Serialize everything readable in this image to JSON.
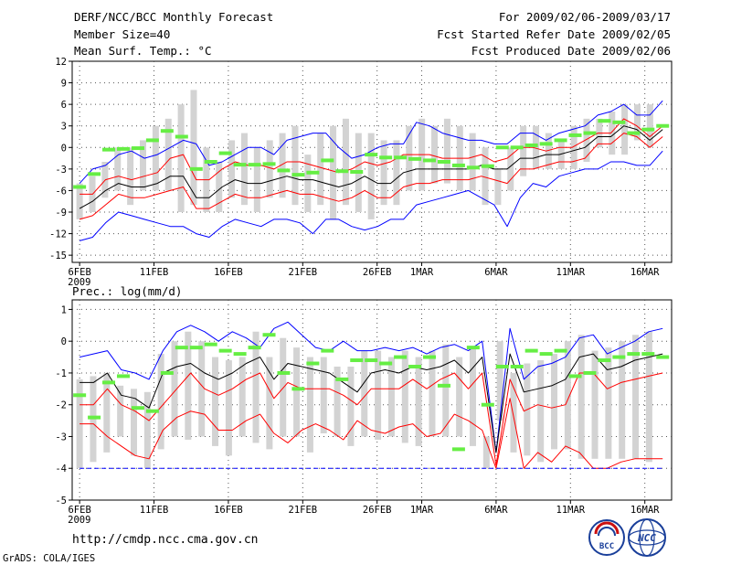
{
  "header": {
    "title": "DERF/NCC/BCC Monthly Forecast",
    "member_size": "Member Size=40",
    "variable": "Mean Surf. Temp.: °C",
    "period": "For 2009/02/06-2009/03/17",
    "started": "Fcst Started Refer Date 2009/02/05",
    "produced": "Fcst Produced Date 2009/02/06"
  },
  "footer": {
    "url": "http://cmdp.ncc.cma.gov.cn",
    "credit": "GrADS: COLA/IGES",
    "logo_left_text": "BCC",
    "logo_right_text": "NCC"
  },
  "colors": {
    "max_min": "#0000ff",
    "mean": "#000000",
    "spread": "#ff0000",
    "box": "#d3d3d3",
    "clim": "#66ee44",
    "grid": "#555555"
  },
  "chart_data": [
    {
      "type": "line",
      "title": "Mean Surf. Temp.: °C",
      "x_tick_labels": [
        "6FEB\n2009",
        "11FEB",
        "16FEB",
        "21FEB",
        "26FEB",
        "1MAR",
        "6MAR",
        "11MAR",
        "16MAR"
      ],
      "x_tick_days": [
        1,
        6,
        11,
        16,
        21,
        24,
        29,
        34,
        39
      ],
      "xlim": [
        0.5,
        40.8
      ],
      "ylim": [
        -16,
        12
      ],
      "y_ticks": [
        12,
        9,
        6,
        3,
        0,
        -3,
        -6,
        -9,
        -12,
        -15
      ],
      "grid": true,
      "series": [
        {
          "name": "max",
          "color": "#0000ff",
          "values": [
            -5,
            -3,
            -2.5,
            -1,
            -0.5,
            -1.5,
            -1,
            0,
            1,
            0.5,
            -2.5,
            -2,
            -1,
            0,
            0,
            -1,
            1,
            1.5,
            2,
            2,
            0,
            -1.5,
            -1,
            0,
            0.5,
            0.5,
            3.5,
            3,
            2,
            1.5,
            1,
            1,
            0.5,
            0.5,
            2,
            2,
            1,
            2,
            2.5,
            3,
            4.5,
            5,
            6,
            4.5,
            4.5,
            6.5
          ]
        },
        {
          "name": "upper",
          "color": "#ff0000",
          "values": [
            -6.5,
            -6.5,
            -4.5,
            -4,
            -4.5,
            -4,
            -3.5,
            -1.5,
            -1,
            -4.5,
            -4.5,
            -3,
            -2,
            -2.5,
            -2.5,
            -3,
            -2,
            -2,
            -2.5,
            -3,
            -3.5,
            -3,
            -2,
            -2.5,
            -2,
            -1,
            -1,
            -1,
            -1.5,
            -1.5,
            -1.5,
            -1,
            -2,
            -1.5,
            0,
            0,
            -0.5,
            0,
            0,
            1,
            2,
            2,
            4,
            3,
            1.5,
            3
          ]
        },
        {
          "name": "mean",
          "color": "#000000",
          "values": [
            -8.5,
            -7.5,
            -6,
            -5,
            -5.5,
            -5.5,
            -5,
            -4,
            -4,
            -7,
            -7,
            -5.5,
            -4.5,
            -5,
            -5,
            -4.5,
            -4,
            -4.5,
            -4.5,
            -5,
            -5.5,
            -5,
            -4,
            -5,
            -5,
            -3.5,
            -3,
            -3,
            -3,
            -3,
            -3,
            -2.5,
            -3,
            -3,
            -1.5,
            -1.5,
            -1,
            -1,
            -0.5,
            0,
            1.5,
            1.5,
            3,
            2.5,
            1,
            2.5
          ]
        },
        {
          "name": "lower",
          "color": "#ff0000",
          "values": [
            -10,
            -9.5,
            -8,
            -6.5,
            -7,
            -7,
            -6.5,
            -6,
            -5.5,
            -8.5,
            -8.5,
            -7.5,
            -6.5,
            -7,
            -7,
            -6.5,
            -6,
            -6.5,
            -6.5,
            -7,
            -7.5,
            -7,
            -6,
            -7,
            -7,
            -5.5,
            -5,
            -5,
            -4.5,
            -4.5,
            -4.5,
            -4,
            -4.5,
            -5,
            -3,
            -3,
            -2.5,
            -2,
            -2,
            -1.5,
            0.5,
            0.5,
            2,
            1.5,
            0,
            1.5
          ]
        },
        {
          "name": "min",
          "color": "#0000ff",
          "values": [
            -13,
            -12.5,
            -10.5,
            -9,
            -9.5,
            -10,
            -10.5,
            -11,
            -11,
            -12,
            -12.5,
            -11,
            -10,
            -10.5,
            -11,
            -10,
            -10,
            -10.5,
            -12,
            -10,
            -10,
            -11,
            -11.5,
            -11,
            -10,
            -10,
            -8,
            -7.5,
            -7,
            -6.5,
            -6,
            -7,
            -8,
            -11,
            -7,
            -5,
            -5.5,
            -4,
            -3.5,
            -3,
            -3,
            -2,
            -2,
            -2.5,
            -2.5,
            -0.5
          ]
        },
        {
          "name": "climatology",
          "color": "#66ee44",
          "values": [
            -5.5,
            -3.7,
            -0.3,
            -0.2,
            -0.1,
            1.0,
            2.3,
            1.5,
            -3.0,
            -2.0,
            -0.8,
            -2.4,
            -2.4,
            -2.3,
            -3.2,
            -3.8,
            -3.5,
            -1.8,
            -3.3,
            -3.4,
            -1.0,
            -1.4,
            -1.4,
            -1.6,
            -1.8,
            -2.0,
            -2.5,
            -2.8,
            -2.6,
            0.0,
            0.0,
            0.3,
            0.5,
            1.0,
            1.7,
            2.0,
            3.7,
            3.5,
            2.0,
            2.5,
            3.0
          ]
        }
      ],
      "boxes": [
        [
          -10,
          -5
        ],
        [
          -9,
          -4
        ],
        [
          -7,
          -2
        ],
        [
          -6,
          0
        ],
        [
          -8,
          0
        ],
        [
          -6,
          1
        ],
        [
          -6,
          3
        ],
        [
          -6,
          4
        ],
        [
          -9,
          6
        ],
        [
          -8,
          8
        ],
        [
          -9,
          0
        ],
        [
          -9,
          -2
        ],
        [
          -7,
          1
        ],
        [
          -8,
          2
        ],
        [
          -9,
          0
        ],
        [
          -7,
          1
        ],
        [
          -7,
          2
        ],
        [
          -8,
          3
        ],
        [
          -9,
          -1
        ],
        [
          -8,
          2
        ],
        [
          -10,
          3
        ],
        [
          -8,
          4
        ],
        [
          -9,
          2
        ],
        [
          -10,
          2
        ],
        [
          -8,
          1
        ],
        [
          -8,
          1
        ],
        [
          -6,
          3
        ],
        [
          -6,
          4
        ],
        [
          -5,
          3
        ],
        [
          -5,
          4
        ],
        [
          -6,
          3
        ],
        [
          -6,
          2
        ],
        [
          -8,
          0
        ],
        [
          -8,
          -3
        ],
        [
          -6,
          0
        ],
        [
          -4,
          3
        ],
        [
          -3,
          3
        ],
        [
          -3,
          2
        ],
        [
          -3,
          1
        ],
        [
          -3,
          3
        ],
        [
          -2,
          4
        ],
        [
          0,
          4
        ],
        [
          -1,
          5
        ],
        [
          -1,
          6
        ],
        [
          1,
          6
        ],
        [
          0,
          6
        ]
      ]
    },
    {
      "type": "line",
      "title": "Prec.: log(mm/d)",
      "x_tick_labels": [
        "6FEB\n2009",
        "11FEB",
        "16FEB",
        "21FEB",
        "26FEB",
        "1MAR",
        "6MAR",
        "11MAR",
        "16MAR"
      ],
      "x_tick_days": [
        1,
        6,
        11,
        16,
        21,
        24,
        29,
        34,
        39
      ],
      "xlim": [
        0.5,
        40.8
      ],
      "ylim": [
        -5,
        1.3
      ],
      "y_ticks": [
        1,
        0,
        -1,
        -2,
        -3,
        -4,
        -5
      ],
      "grid": true,
      "series": [
        {
          "name": "max",
          "color": "#0000ff",
          "values": [
            -0.5,
            -0.4,
            -0.3,
            -0.9,
            -1,
            -1.2,
            -0.3,
            0.3,
            0.5,
            0.3,
            0,
            0.3,
            0.1,
            -0.2,
            0.4,
            0.6,
            0.2,
            -0.2,
            -0.3,
            0,
            -0.3,
            -0.3,
            -0.2,
            -0.3,
            -0.2,
            -0.4,
            -0.2,
            -0.1,
            -0.3,
            0,
            -3.5,
            0.4,
            -1.2,
            -0.8,
            -0.7,
            -0.5,
            0.1,
            0.2,
            -0.4,
            -0.2,
            0,
            0.3,
            0.4
          ]
        },
        {
          "name": "mean",
          "color": "#000000",
          "values": [
            -1.3,
            -1.3,
            -1,
            -1.7,
            -1.8,
            -2.1,
            -1,
            -0.8,
            -0.7,
            -1,
            -1.2,
            -1,
            -0.7,
            -0.5,
            -1.2,
            -0.7,
            -0.8,
            -0.9,
            -1,
            -1.3,
            -1.6,
            -1,
            -0.9,
            -1,
            -0.8,
            -0.9,
            -0.8,
            -0.6,
            -1,
            -0.5,
            -3.5,
            -0.4,
            -1.6,
            -1.5,
            -1.4,
            -1.2,
            -0.5,
            -0.4,
            -0.9,
            -0.8,
            -0.6,
            -0.5,
            -0.4
          ]
        },
        {
          "name": "upper",
          "color": "#ff0000",
          "values": [
            -2,
            -2,
            -1.5,
            -2,
            -2.2,
            -2.5,
            -2,
            -1.5,
            -1,
            -1.5,
            -1.7,
            -1.5,
            -1.2,
            -1,
            -1.8,
            -1.3,
            -1.5,
            -1.5,
            -1.5,
            -1.7,
            -2,
            -1.5,
            -1.5,
            -1.5,
            -1.2,
            -1.5,
            -1.2,
            -1,
            -1.5,
            -1,
            -3.9,
            -1.2,
            -2.2,
            -2,
            -2.1,
            -2,
            -1,
            -1,
            -1.5,
            -1.3,
            -1.2,
            -1.1,
            -1
          ]
        },
        {
          "name": "lower",
          "color": "#ff0000",
          "values": [
            -2.6,
            -2.6,
            -3,
            -3.3,
            -3.6,
            -3.7,
            -2.8,
            -2.4,
            -2.2,
            -2.3,
            -2.8,
            -2.8,
            -2.5,
            -2.3,
            -2.9,
            -3.2,
            -2.8,
            -2.6,
            -2.8,
            -3.1,
            -2.5,
            -2.8,
            -2.9,
            -2.7,
            -2.6,
            -3,
            -2.9,
            -2.3,
            -2.5,
            -2.8,
            -4,
            -1.8,
            -4,
            -3.5,
            -3.8,
            -3.3,
            -3.5,
            -4,
            -4,
            -3.8,
            -3.7,
            -3.7,
            -3.7
          ]
        },
        {
          "name": "min",
          "color": "#0000ff",
          "values": [
            -4,
            -4,
            -4,
            -4,
            -4,
            -4,
            -4,
            -4,
            -4,
            -4,
            -4,
            -4,
            -4,
            -4,
            -4,
            -4,
            -4,
            -4,
            -4,
            -4,
            -4,
            -4,
            -4,
            -4,
            -4,
            -4,
            -4,
            -4,
            -4,
            -4,
            -4,
            -4,
            -4,
            -4,
            -4,
            -4,
            -4,
            -4,
            -4,
            -4,
            -4,
            -4,
            -4
          ]
        },
        {
          "name": "climatology",
          "color": "#66ee44",
          "values": [
            -1.7,
            -2.4,
            -1.3,
            -1.1,
            -2.1,
            -2.2,
            -1.0,
            -0.2,
            -0.2,
            -0.1,
            -0.3,
            -0.4,
            -0.2,
            0.2,
            -1.0,
            -1.5,
            -0.7,
            -0.3,
            -1.2,
            -0.6,
            -0.6,
            -0.7,
            -0.5,
            -0.8,
            -0.5,
            -1.4,
            -3.4,
            -0.2,
            -2.0,
            -0.8,
            -0.8,
            -0.3,
            -0.4,
            -0.3,
            -1.1,
            -1.0,
            -0.6,
            -0.5,
            -0.4,
            -0.4,
            -0.5
          ]
        }
      ],
      "boxes": [
        [
          -4,
          -1.2
        ],
        [
          -3.8,
          -1.1
        ],
        [
          -3.5,
          -1
        ],
        [
          -3,
          -1.4
        ],
        [
          -3.6,
          -1.5
        ],
        [
          -4,
          -1.6
        ],
        [
          -3.4,
          -0.4
        ],
        [
          -3,
          0
        ],
        [
          -3.1,
          0.3
        ],
        [
          -3,
          0
        ],
        [
          -3.3,
          -0.5
        ],
        [
          -3.6,
          -0.6
        ],
        [
          -3,
          -0.5
        ],
        [
          -3.2,
          0.3
        ],
        [
          -3.4,
          -0.5
        ],
        [
          -3,
          0.1
        ],
        [
          -3,
          -0.2
        ],
        [
          -3.5,
          -0.5
        ],
        [
          -2.9,
          -0.5
        ],
        [
          -3,
          -0.8
        ],
        [
          -3.3,
          -0.8
        ],
        [
          -3,
          -0.3
        ],
        [
          -3.1,
          -0.3
        ],
        [
          -3,
          -0.5
        ],
        [
          -3.2,
          -0.3
        ],
        [
          -3.3,
          -0.5
        ],
        [
          -3,
          -0.3
        ],
        [
          -3,
          -0.1
        ],
        [
          -3,
          -0.5
        ],
        [
          -3.3,
          -0.2
        ],
        [
          -4,
          -3
        ],
        [
          -2.5,
          0
        ],
        [
          -3.5,
          -1
        ],
        [
          -3.6,
          -0.7
        ],
        [
          -3.8,
          -0.6
        ],
        [
          -3.4,
          -0.4
        ],
        [
          -3.4,
          0
        ],
        [
          -3.7,
          0.2
        ],
        [
          -3.7,
          -0.3
        ],
        [
          -3.7,
          -0.2
        ],
        [
          -3.7,
          0
        ],
        [
          -3.7,
          0.2
        ],
        [
          -3.8,
          0.3
        ]
      ]
    }
  ]
}
